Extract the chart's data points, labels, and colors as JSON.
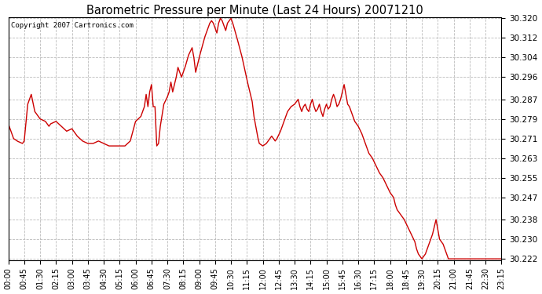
{
  "title": "Barometric Pressure per Minute (Last 24 Hours) 20071210",
  "copyright": "Copyright 2007 Cartronics.com",
  "line_color": "#cc0000",
  "background_color": "#ffffff",
  "grid_color": "#aaaaaa",
  "ylim": [
    30.222,
    30.32
  ],
  "yticks": [
    30.222,
    30.23,
    30.238,
    30.247,
    30.255,
    30.263,
    30.271,
    30.279,
    30.287,
    30.296,
    30.304,
    30.312,
    30.32
  ],
  "xtick_labels": [
    "00:00",
    "00:45",
    "01:30",
    "02:15",
    "03:00",
    "03:45",
    "04:30",
    "05:15",
    "06:00",
    "06:45",
    "07:30",
    "08:15",
    "09:00",
    "09:45",
    "10:30",
    "11:15",
    "12:00",
    "12:45",
    "13:30",
    "14:15",
    "15:00",
    "15:45",
    "16:30",
    "17:15",
    "18:00",
    "18:45",
    "19:30",
    "20:15",
    "21:00",
    "21:45",
    "22:30",
    "23:15"
  ],
  "control_points": [
    [
      0,
      30.277
    ],
    [
      15,
      30.271
    ],
    [
      25,
      30.27
    ],
    [
      40,
      30.269
    ],
    [
      45,
      30.27
    ],
    [
      55,
      30.285
    ],
    [
      65,
      30.289
    ],
    [
      75,
      30.282
    ],
    [
      85,
      30.28
    ],
    [
      90,
      30.279
    ],
    [
      105,
      30.278
    ],
    [
      115,
      30.276
    ],
    [
      120,
      30.277
    ],
    [
      135,
      30.278
    ],
    [
      150,
      30.276
    ],
    [
      165,
      30.274
    ],
    [
      180,
      30.275
    ],
    [
      195,
      30.272
    ],
    [
      210,
      30.27
    ],
    [
      225,
      30.269
    ],
    [
      240,
      30.269
    ],
    [
      255,
      30.27
    ],
    [
      270,
      30.269
    ],
    [
      285,
      30.268
    ],
    [
      300,
      30.268
    ],
    [
      315,
      30.268
    ],
    [
      330,
      30.268
    ],
    [
      345,
      30.27
    ],
    [
      360,
      30.278
    ],
    [
      375,
      30.28
    ],
    [
      385,
      30.284
    ],
    [
      390,
      30.289
    ],
    [
      395,
      30.284
    ],
    [
      400,
      30.29
    ],
    [
      405,
      30.293
    ],
    [
      410,
      30.284
    ],
    [
      415,
      30.284
    ],
    [
      420,
      30.268
    ],
    [
      425,
      30.269
    ],
    [
      430,
      30.276
    ],
    [
      440,
      30.285
    ],
    [
      450,
      30.288
    ],
    [
      455,
      30.29
    ],
    [
      460,
      30.294
    ],
    [
      465,
      30.29
    ],
    [
      475,
      30.296
    ],
    [
      480,
      30.3
    ],
    [
      490,
      30.296
    ],
    [
      500,
      30.3
    ],
    [
      510,
      30.305
    ],
    [
      520,
      30.308
    ],
    [
      525,
      30.304
    ],
    [
      530,
      30.298
    ],
    [
      540,
      30.304
    ],
    [
      555,
      30.312
    ],
    [
      565,
      30.316
    ],
    [
      570,
      30.318
    ],
    [
      575,
      30.319
    ],
    [
      580,
      30.318
    ],
    [
      585,
      30.316
    ],
    [
      590,
      30.314
    ],
    [
      595,
      30.318
    ],
    [
      600,
      30.32
    ],
    [
      605,
      30.319
    ],
    [
      610,
      30.317
    ],
    [
      615,
      30.315
    ],
    [
      620,
      30.318
    ],
    [
      625,
      30.319
    ],
    [
      630,
      30.32
    ],
    [
      635,
      30.318
    ],
    [
      645,
      30.313
    ],
    [
      660,
      30.305
    ],
    [
      675,
      30.295
    ],
    [
      685,
      30.289
    ],
    [
      690,
      30.286
    ],
    [
      695,
      30.28
    ],
    [
      700,
      30.276
    ],
    [
      705,
      30.272
    ],
    [
      710,
      30.269
    ],
    [
      720,
      30.268
    ],
    [
      730,
      30.269
    ],
    [
      740,
      30.271
    ],
    [
      745,
      30.272
    ],
    [
      750,
      30.271
    ],
    [
      755,
      30.27
    ],
    [
      760,
      30.271
    ],
    [
      770,
      30.274
    ],
    [
      780,
      30.278
    ],
    [
      790,
      30.282
    ],
    [
      800,
      30.284
    ],
    [
      810,
      30.285
    ],
    [
      820,
      30.287
    ],
    [
      825,
      30.284
    ],
    [
      830,
      30.282
    ],
    [
      835,
      30.284
    ],
    [
      840,
      30.285
    ],
    [
      845,
      30.283
    ],
    [
      850,
      30.282
    ],
    [
      855,
      30.285
    ],
    [
      860,
      30.287
    ],
    [
      865,
      30.284
    ],
    [
      870,
      30.282
    ],
    [
      875,
      30.283
    ],
    [
      880,
      30.285
    ],
    [
      885,
      30.282
    ],
    [
      890,
      30.28
    ],
    [
      895,
      30.283
    ],
    [
      900,
      30.285
    ],
    [
      905,
      30.283
    ],
    [
      910,
      30.284
    ],
    [
      915,
      30.287
    ],
    [
      920,
      30.289
    ],
    [
      925,
      30.287
    ],
    [
      930,
      30.284
    ],
    [
      935,
      30.285
    ],
    [
      940,
      30.287
    ],
    [
      945,
      30.29
    ],
    [
      950,
      30.293
    ],
    [
      955,
      30.289
    ],
    [
      960,
      30.285
    ],
    [
      965,
      30.284
    ],
    [
      970,
      30.282
    ],
    [
      975,
      30.28
    ],
    [
      980,
      30.278
    ],
    [
      990,
      30.276
    ],
    [
      1000,
      30.273
    ],
    [
      1005,
      30.271
    ],
    [
      1010,
      30.269
    ],
    [
      1015,
      30.267
    ],
    [
      1020,
      30.265
    ],
    [
      1030,
      30.263
    ],
    [
      1040,
      30.26
    ],
    [
      1050,
      30.257
    ],
    [
      1060,
      30.255
    ],
    [
      1070,
      30.252
    ],
    [
      1080,
      30.249
    ],
    [
      1090,
      30.247
    ],
    [
      1095,
      30.244
    ],
    [
      1100,
      30.242
    ],
    [
      1110,
      30.24
    ],
    [
      1120,
      30.238
    ],
    [
      1130,
      30.235
    ],
    [
      1140,
      30.232
    ],
    [
      1150,
      30.229
    ],
    [
      1155,
      30.226
    ],
    [
      1160,
      30.224
    ],
    [
      1170,
      30.222
    ],
    [
      1180,
      30.224
    ],
    [
      1190,
      30.228
    ],
    [
      1200,
      30.232
    ],
    [
      1205,
      30.235
    ],
    [
      1210,
      30.238
    ],
    [
      1215,
      30.234
    ],
    [
      1220,
      30.23
    ],
    [
      1225,
      30.229
    ],
    [
      1230,
      30.228
    ],
    [
      1235,
      30.226
    ],
    [
      1240,
      30.224
    ],
    [
      1245,
      30.222
    ],
    [
      1395,
      30.222
    ]
  ]
}
